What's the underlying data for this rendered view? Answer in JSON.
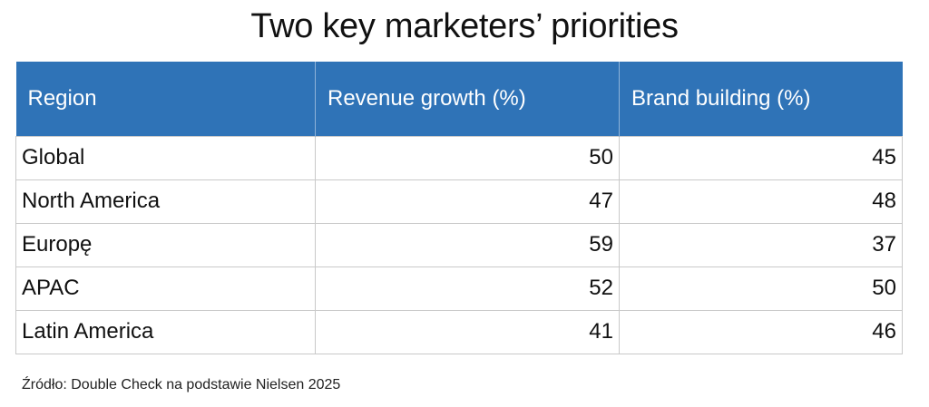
{
  "chart_data": {
    "type": "table",
    "title": "Two key marketers’ priorities",
    "columns": [
      "Region",
      "Revenue growth (%)",
      "Brand building (%)"
    ],
    "rows": [
      {
        "region": "Global",
        "revenue_growth": "50",
        "brand_building": "45"
      },
      {
        "region": "North America",
        "revenue_growth": "47",
        "brand_building": "48"
      },
      {
        "region": "Europę",
        "revenue_growth": "59",
        "brand_building": "37"
      },
      {
        "region": "APAC",
        "revenue_growth": "52",
        "brand_building": "50"
      },
      {
        "region": "Latin America",
        "revenue_growth": "41",
        "brand_building": "46"
      }
    ],
    "source": "Źródło: Double Check na podstawie Nielsen 2025",
    "colors": {
      "header_background": "#2f73b7",
      "header_text": "#ffffff",
      "grid": "#c9c9c9"
    }
  }
}
